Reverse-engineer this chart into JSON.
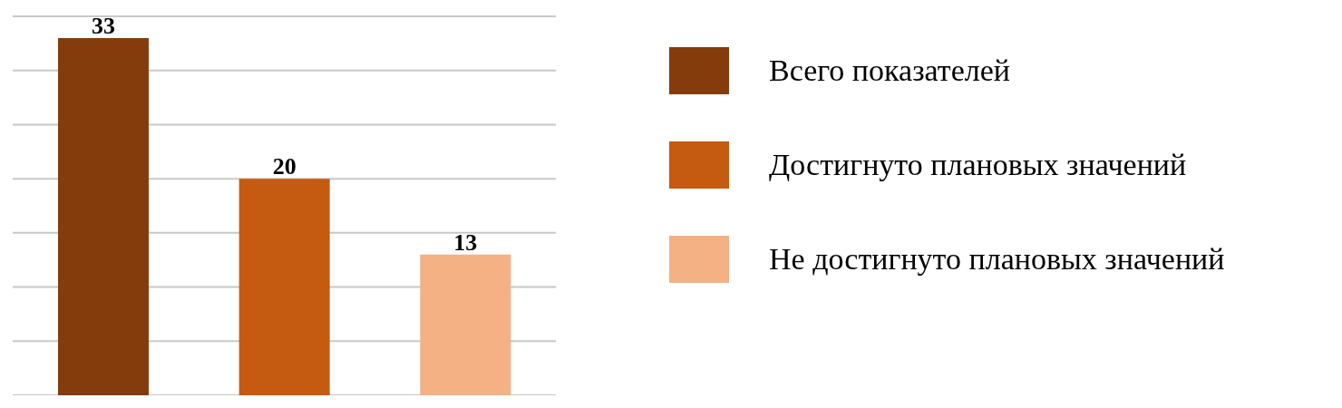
{
  "chart_data": {
    "type": "bar",
    "stacked": true,
    "categories": [
      null,
      null,
      null
    ],
    "series": [
      {
        "name": "Всего показателей",
        "color": "#843c0c",
        "values": [
          33,
          null,
          null
        ]
      },
      {
        "name": "Достигнуто плановых значений",
        "color": "#c55a11",
        "values": [
          null,
          20,
          null
        ]
      },
      {
        "name": "Не достигнуто плановых значений",
        "color": "#f4b183",
        "values": [
          null,
          null,
          13
        ]
      }
    ],
    "ylim": [
      0,
      35
    ],
    "yticks": [
      {
        "value": 0,
        "label": null
      },
      {
        "value": 5,
        "label": null
      },
      {
        "value": 10,
        "label": null
      },
      {
        "value": 15,
        "label": null
      },
      {
        "value": 20,
        "label": null
      },
      {
        "value": 25,
        "label": null
      },
      {
        "value": 30,
        "label": null
      },
      {
        "value": 35,
        "label": null
      }
    ],
    "grid": "y",
    "data_labels": true,
    "tick_labels": false,
    "legend": "right"
  }
}
